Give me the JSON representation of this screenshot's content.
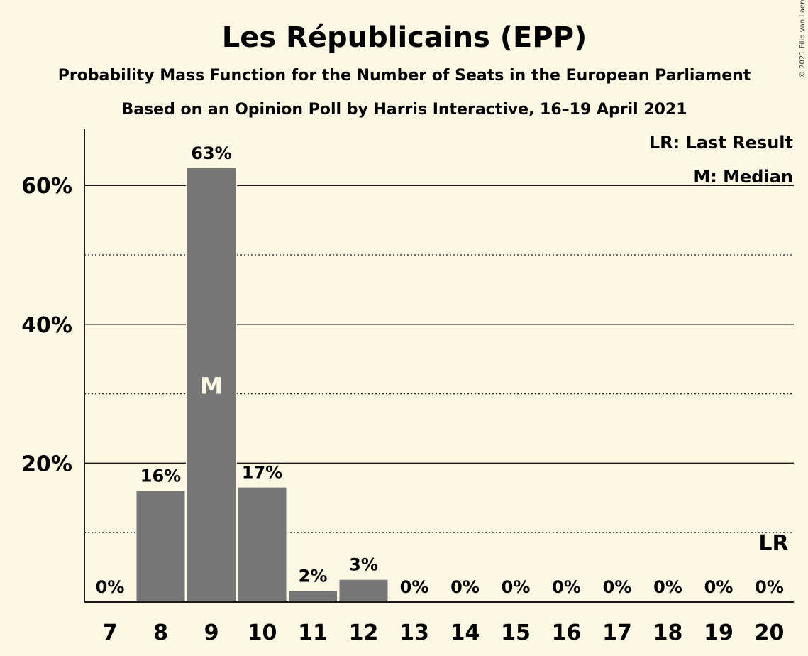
{
  "copyright": "© 2021 Filip van Laenen",
  "colors": {
    "background": "#fdf8e4",
    "bar": "#767676",
    "text": "#1a1a1a"
  },
  "chart_data": {
    "type": "bar",
    "title": "Les Républicains (EPP)",
    "subtitle": "Probability Mass Function for the Number of Seats in the European Parliament",
    "subtitle2": "Based on an Opinion Poll by Harris Interactive, 16–19 April 2021",
    "categories": [
      "7",
      "8",
      "9",
      "10",
      "11",
      "12",
      "13",
      "14",
      "15",
      "16",
      "17",
      "18",
      "19",
      "20"
    ],
    "values": [
      0,
      16,
      62.5,
      16.5,
      1.6,
      3.2,
      0,
      0,
      0,
      0,
      0,
      0,
      0,
      0
    ],
    "data_labels": [
      "0%",
      "16%",
      "63%",
      "17%",
      "2%",
      "3%",
      "0%",
      "0%",
      "0%",
      "0%",
      "0%",
      "0%",
      "0%",
      "0%"
    ],
    "yticks": [
      {
        "value": 20,
        "label": "20%"
      },
      {
        "value": 40,
        "label": "40%"
      },
      {
        "value": 60,
        "label": "60%"
      }
    ],
    "minor_gridlines": [
      10,
      30,
      50
    ],
    "ylim": [
      0,
      68
    ],
    "median_index": 2,
    "median_marker": "M",
    "last_result_index": 13,
    "last_result_marker": "LR",
    "legend": [
      "LR: Last Result",
      "M: Median"
    ],
    "legend_position": "top-right",
    "xlabel": "",
    "ylabel": ""
  }
}
